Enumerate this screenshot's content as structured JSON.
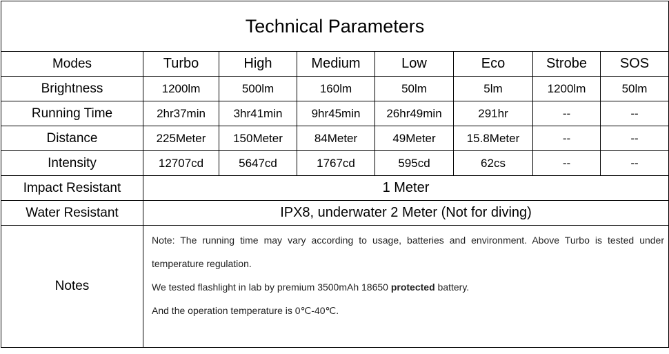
{
  "title": "Technical Parameters",
  "table": {
    "header": [
      "Modes",
      "Turbo",
      "High",
      "Medium",
      "Low",
      "Eco",
      "Strobe",
      "SOS"
    ],
    "rows": [
      [
        "Brightness",
        "1200lm",
        "500lm",
        "160lm",
        "50lm",
        "5lm",
        "1200lm",
        "50lm"
      ],
      [
        "Running Time",
        "2hr37min",
        "3hr41min",
        "9hr45min",
        "26hr49min",
        "291hr",
        "--",
        "--"
      ],
      [
        "Distance",
        "225Meter",
        "150Meter",
        "84Meter",
        "49Meter",
        "15.8Meter",
        "--",
        "--"
      ],
      [
        "Intensity",
        "12707cd",
        "5647cd",
        "1767cd",
        "595cd",
        "62cs",
        "--",
        "--"
      ]
    ],
    "merged_rows": [
      {
        "label": "Impact Resistant",
        "value": "1 Meter"
      },
      {
        "label": "Water Resistant",
        "value": "IPX8, underwater 2 Meter (Not for diving)"
      }
    ]
  },
  "notes": {
    "label": "Notes",
    "line1": "Note: The running time may vary according to usage, batteries and environment. Above Turbo is tested under temperature regulation.",
    "line2": [
      "We tested flashlight in lab by premium 3500mAh 18650",
      "protected",
      "battery."
    ],
    "line3": "And the operation temperature is 0℃-40℃."
  }
}
